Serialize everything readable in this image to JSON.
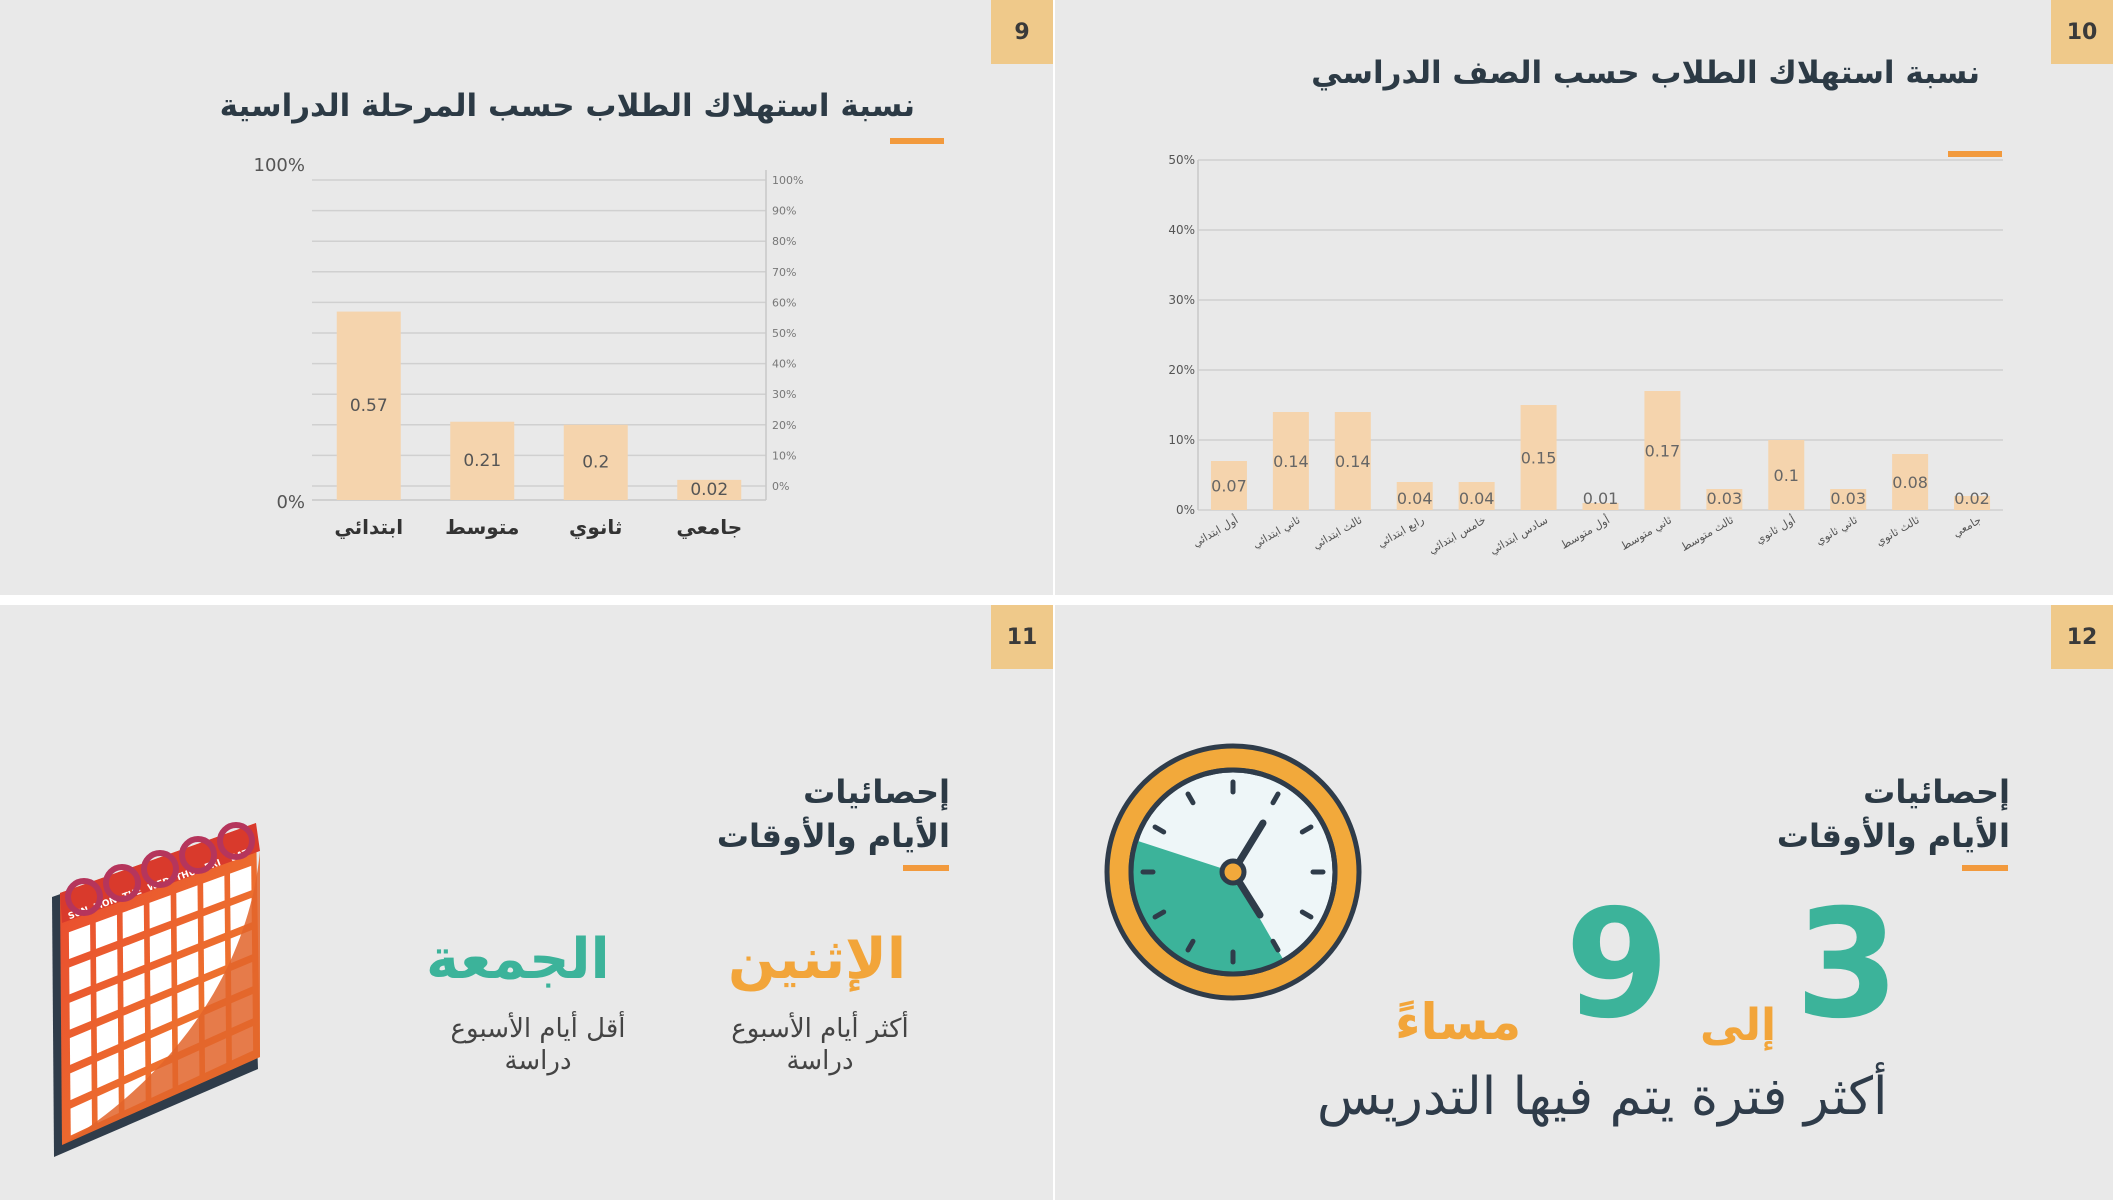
{
  "slides": [
    {
      "number": "9",
      "title": "نسبة استهلاك الطلاب حسب المرحلة الدراسية",
      "chart_labels": {
        "y_max": "100%",
        "y_min": "0%"
      }
    },
    {
      "number": "10",
      "title": "نسبة استهلاك الطلاب حسب الصف الدراسي"
    },
    {
      "number": "11",
      "title_line1": "إحصائيات",
      "title_line2": "الأيام والأوقات",
      "monday": {
        "day": "الإثنين",
        "desc_line1": "أكثر أيام الأسبوع",
        "desc_line2": "دراسة"
      },
      "friday": {
        "day": "الجمعة",
        "desc_line1": "أقل أيام الأسبوع",
        "desc_line2": "دراسة"
      },
      "calendar_days": [
        "SUN",
        "MON",
        "TUE",
        "WED",
        "THU",
        "FRI",
        "SAT"
      ]
    },
    {
      "number": "12",
      "title_line1": "إحصائيات",
      "title_line2": "الأيام والأوقات",
      "from_hour": "3",
      "to_word": "إلى",
      "to_hour": "9",
      "evening": "مساءً",
      "caption": "أكثر فترة يتم فيها التدريس"
    }
  ],
  "colors": {
    "accent": "#f29a3d",
    "teal": "#3cb39a",
    "bar": "#f5d4ad",
    "title": "#2c3a45",
    "badge": "#efc98a"
  },
  "chart_data": [
    {
      "type": "bar",
      "categories": [
        "ابتدائي",
        "متوسط",
        "ثانوي",
        "جامعي"
      ],
      "values": [
        0.57,
        0.21,
        0.2,
        0.02
      ],
      "data_labels": [
        "0.57",
        "0.21",
        "0.2",
        "0.02"
      ],
      "y_ticks_left": [
        "100%",
        "0%"
      ],
      "y_ticks_right": [
        "100%",
        "90%",
        "80%",
        "70%",
        "60%",
        "50%",
        "40%",
        "30%",
        "20%",
        "10%",
        "0%"
      ],
      "ylim": [
        0,
        1
      ],
      "title": "نسبة استهلاك الطلاب حسب المرحلة الدراسية",
      "grid": true
    },
    {
      "type": "bar",
      "categories": [
        "أول ابتدائي",
        "ثاني ابتدائي",
        "ثالث ابتدائي",
        "رابع ابتدائي",
        "خامس ابتدائي",
        "سادس ابتدائي",
        "أول متوسط",
        "ثاني متوسط",
        "ثالث متوسط",
        "أول ثانوي",
        "ثاني ثانوي",
        "ثالث ثانوي",
        "جامعي"
      ],
      "values": [
        0.07,
        0.14,
        0.14,
        0.04,
        0.04,
        0.15,
        0.01,
        0.17,
        0.03,
        0.1,
        0.03,
        0.08,
        0.02
      ],
      "data_labels": [
        "0.07",
        "0.14",
        "0.14",
        "0.04",
        "0.04",
        "0.15",
        "0.01",
        "0.17",
        "0.03",
        "0.1",
        "0.03",
        "0.08",
        "0.02"
      ],
      "y_ticks": [
        "50%",
        "40%",
        "30%",
        "20%",
        "10%",
        "0%"
      ],
      "ylim": [
        0,
        0.5
      ],
      "title": "نسبة استهلاك الطلاب حسب الصف الدراسي",
      "grid": true
    }
  ]
}
